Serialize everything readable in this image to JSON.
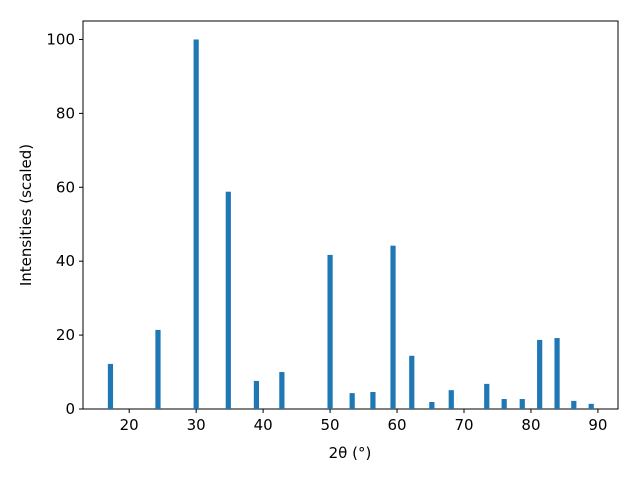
{
  "chart_data": {
    "type": "bar",
    "x_label": "2θ (°)",
    "y_label": "Intensities (scaled)",
    "x": [
      17.2,
      24.3,
      30.0,
      34.8,
      39.0,
      42.8,
      50.0,
      53.3,
      56.4,
      59.4,
      62.2,
      65.2,
      68.1,
      73.4,
      76.0,
      78.7,
      81.3,
      83.9,
      86.4,
      89.0
    ],
    "values": [
      12.2,
      21.4,
      100,
      58.8,
      7.6,
      10.0,
      41.7,
      4.3,
      4.6,
      44.2,
      14.4,
      1.9,
      5.1,
      6.8,
      2.7,
      2.7,
      18.7,
      19.2,
      2.2,
      1.4
    ],
    "color": "#1f77b4",
    "xlim": [
      13.1,
      93.0
    ],
    "xticks": [
      20,
      30,
      40,
      50,
      60,
      70,
      80,
      90
    ],
    "ylim": [
      0,
      105
    ],
    "yticks": [
      0,
      20,
      40,
      60,
      80,
      100
    ]
  }
}
